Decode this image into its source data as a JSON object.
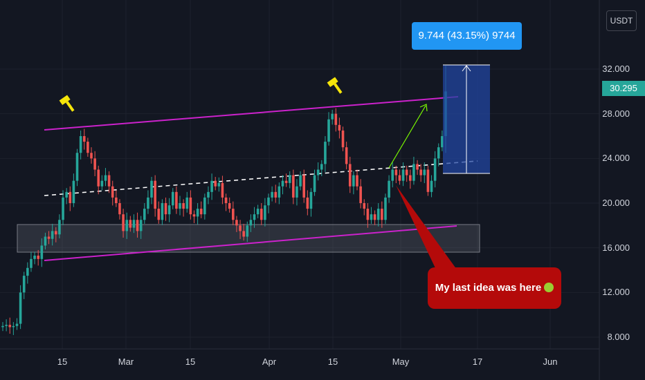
{
  "currency": "USDT",
  "last_price": "30.295",
  "measure_label": "9.744 (43.15%) 9744",
  "callout_text": "My last idea was here",
  "callout_icon": "money-mouth-face-icon",
  "marker_icon": "hammer-icon",
  "colors": {
    "background": "#131722",
    "up": "#26a69a",
    "down": "#ef5350",
    "channel": "#cc22cc",
    "measure": "#2196f3",
    "callout": "#b40a0a",
    "marker": "#f5e50a",
    "arrow": "#7cfc00"
  },
  "chart_data": {
    "type": "candlestick",
    "ylim": [
      7,
      35
    ],
    "y_ticks": [
      "8.000",
      "12.000",
      "16.000",
      "20.000",
      "24.000",
      "28.000",
      "32.000"
    ],
    "x_ticks": [
      "15",
      "Mar",
      "15",
      "Apr",
      "15",
      "May",
      "17",
      "Jun"
    ],
    "close": [
      9.0,
      9.1,
      8.9,
      9.0,
      9.2,
      12.0,
      13.5,
      14.2,
      15.0,
      15.3,
      15.0,
      16.2,
      17.0,
      16.8,
      17.5,
      17.2,
      18.5,
      20.5,
      21.0,
      20.0,
      22.0,
      24.5,
      26.0,
      25.5,
      24.5,
      24.0,
      23.0,
      21.5,
      22.0,
      22.5,
      21.5,
      20.5,
      20.0,
      19.0,
      17.5,
      18.5,
      17.8,
      18.5,
      17.5,
      18.5,
      19.5,
      20.5,
      22.0,
      19.5,
      18.5,
      20.0,
      19.0,
      19.8,
      21.0,
      19.5,
      20.0,
      19.5,
      20.5,
      19.0,
      18.8,
      19.5,
      19.0,
      20.5,
      21.0,
      22.0,
      21.5,
      21.8,
      20.5,
      20.0,
      19.5,
      18.5,
      18.0,
      17.5,
      17.0,
      18.0,
      18.5,
      19.0,
      19.5,
      18.5,
      19.8,
      20.5,
      21.0,
      20.5,
      21.5,
      22.0,
      21.8,
      22.5,
      20.5,
      21.5,
      22.5,
      20.5,
      19.5,
      21.0,
      22.5,
      23.0,
      23.5,
      25.5,
      27.5,
      28.0,
      27.0,
      26.5,
      25.0,
      23.5,
      21.5,
      22.5,
      21.5,
      20.0,
      19.5,
      18.5,
      19.0,
      18.5,
      19.5,
      18.5,
      20.5,
      22.0,
      23.0,
      22.5,
      22.0,
      23.0,
      22.5,
      22.0,
      23.5,
      23.0,
      22.5,
      23.0,
      21.0,
      22.0,
      24.0,
      25.0,
      26.0,
      30.0
    ]
  }
}
